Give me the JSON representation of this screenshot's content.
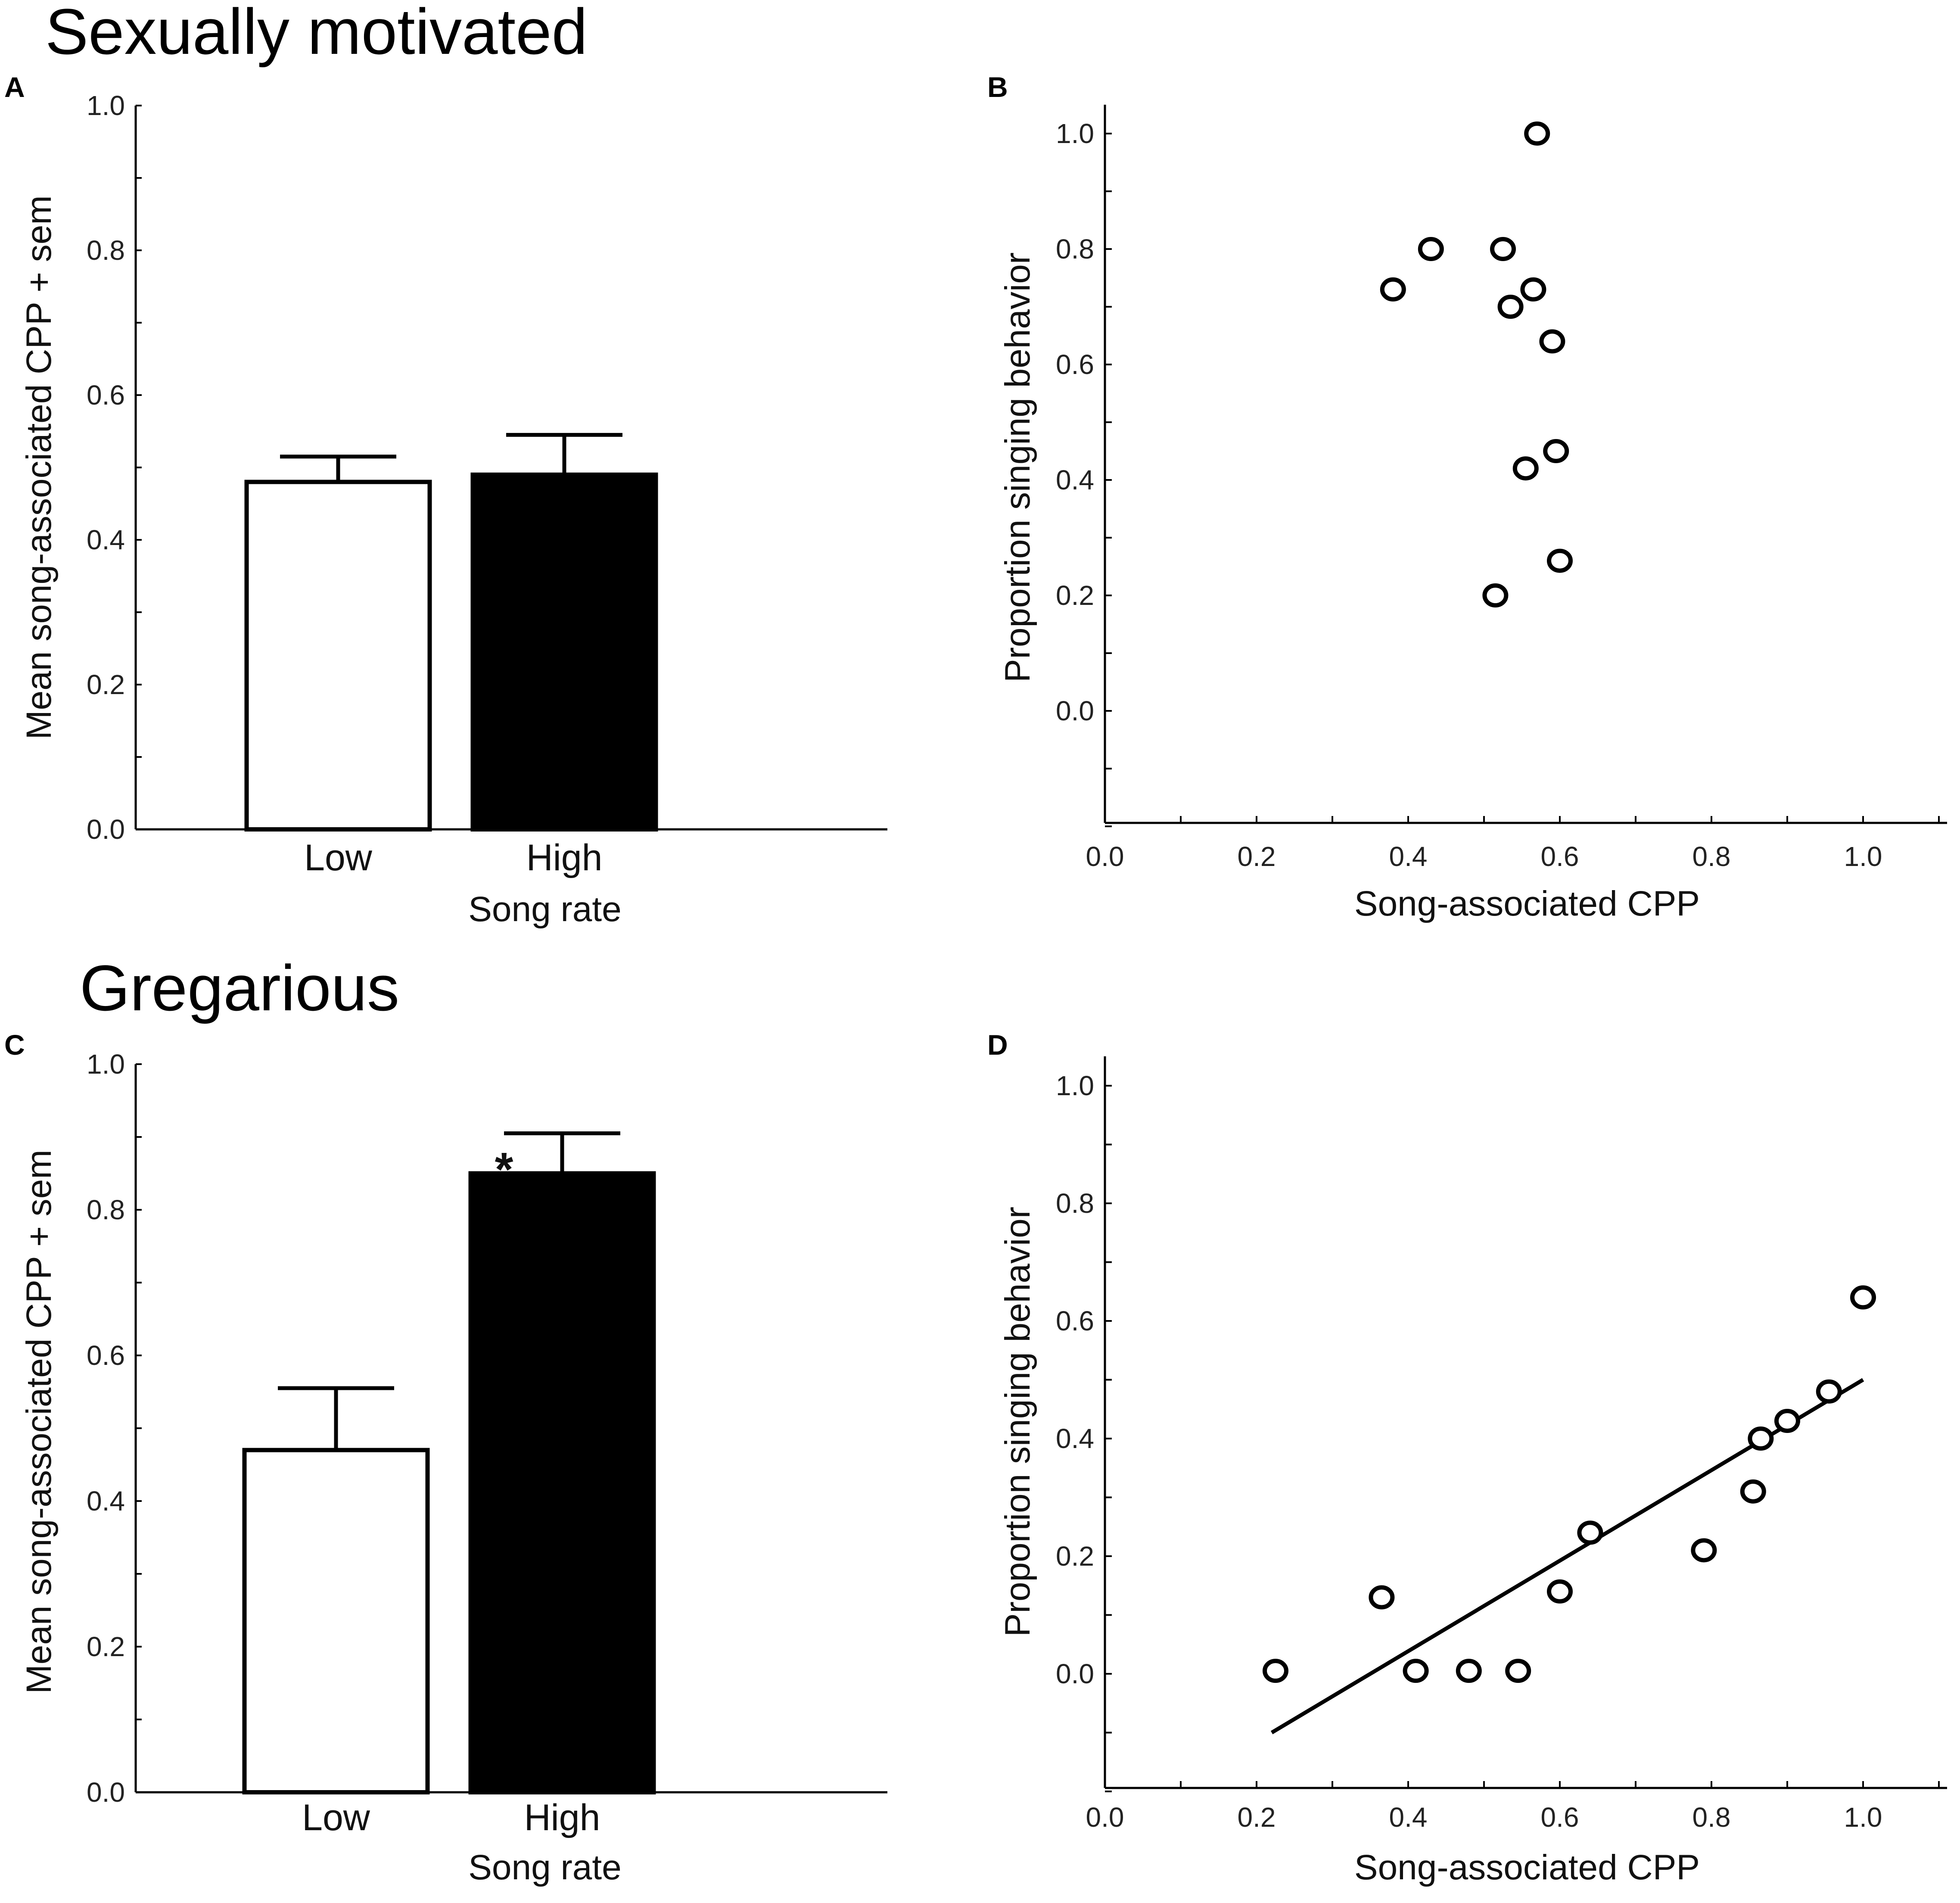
{
  "sections": [
    {
      "title": "Sexually motivated"
    },
    {
      "title": "Gregarious"
    }
  ],
  "chart_data": [
    {
      "panel": "A",
      "type": "bar",
      "categories": [
        "Low",
        "High"
      ],
      "values": [
        0.48,
        0.49
      ],
      "errors": [
        0.035,
        0.055
      ],
      "bar_colors": [
        "#ffffff",
        "#000000"
      ],
      "xlabel": "Song rate",
      "ylabel": "Mean song-associated CPP + sem",
      "ylim": [
        0,
        1.0
      ],
      "yticks": [
        "0.0",
        "0.2",
        "0.4",
        "0.6",
        "0.8",
        "1.0"
      ],
      "annotations": []
    },
    {
      "panel": "B",
      "type": "scatter",
      "x": [
        0.38,
        0.43,
        0.525,
        0.535,
        0.565,
        0.57,
        0.59,
        0.595,
        0.555,
        0.6,
        0.515
      ],
      "y": [
        0.73,
        0.8,
        0.8,
        0.7,
        0.73,
        1.0,
        0.64,
        0.45,
        0.42,
        0.26,
        0.2
      ],
      "xlabel": "Song-associated CPP",
      "ylabel": "Proportion singing behavior",
      "xlim": [
        0,
        1.1
      ],
      "ylim": [
        -0.2,
        1.05
      ],
      "xticks": [
        "0.0",
        "0.2",
        "0.4",
        "0.6",
        "0.8",
        "1.0"
      ],
      "yticks": [
        "0.0",
        "0.2",
        "0.4",
        "0.6",
        "0.8",
        "1.0"
      ]
    },
    {
      "panel": "C",
      "type": "bar",
      "categories": [
        "Low",
        "High"
      ],
      "values": [
        0.47,
        0.85
      ],
      "errors": [
        0.085,
        0.055
      ],
      "bar_colors": [
        "#ffffff",
        "#000000"
      ],
      "xlabel": "Song rate",
      "ylabel": "Mean song-associated CPP + sem",
      "ylim": [
        0,
        1.0
      ],
      "yticks": [
        "0.0",
        "0.2",
        "0.4",
        "0.6",
        "0.8",
        "1.0"
      ],
      "annotations": [
        {
          "text": "*"
        }
      ]
    },
    {
      "panel": "D",
      "type": "scatter",
      "x": [
        0.225,
        0.365,
        0.41,
        0.48,
        0.545,
        0.6,
        0.64,
        0.79,
        0.855,
        0.865,
        0.9,
        0.955,
        1.0
      ],
      "y": [
        0.005,
        0.13,
        0.005,
        0.005,
        0.005,
        0.14,
        0.24,
        0.21,
        0.31,
        0.4,
        0.43,
        0.48,
        0.64
      ],
      "fit_line": {
        "x": [
          0.22,
          1.0
        ],
        "y": [
          -0.1,
          0.5
        ]
      },
      "xlabel": "Song-associated CPP",
      "ylabel": "Proportion singing behavior",
      "xlim": [
        0,
        1.1
      ],
      "ylim": [
        -0.2,
        1.05
      ],
      "xticks": [
        "0.0",
        "0.2",
        "0.4",
        "0.6",
        "0.8",
        "1.0"
      ],
      "yticks": [
        "0.0",
        "0.2",
        "0.4",
        "0.6",
        "0.8",
        "1.0"
      ]
    }
  ]
}
